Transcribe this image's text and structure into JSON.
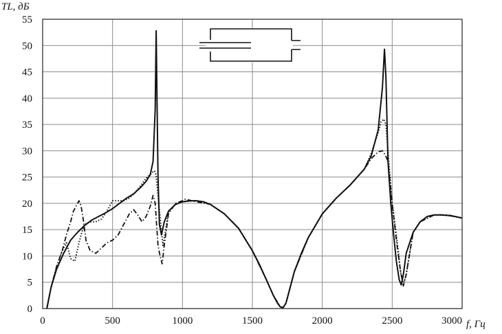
{
  "chart_data": {
    "type": "line",
    "title": "",
    "xlabel": "f, Гц",
    "ylabel": "TL, дБ",
    "xlim": [
      0,
      3000
    ],
    "ylim": [
      0,
      55
    ],
    "xticks": [
      0,
      500,
      1000,
      1500,
      2000,
      2500,
      3000
    ],
    "xtick_labels": [
      "0",
      "500",
      "1000",
      "1500",
      "2000",
      "2500",
      "3000"
    ],
    "yticks": [
      0,
      5,
      10,
      15,
      20,
      25,
      30,
      35,
      40,
      45,
      50,
      55
    ],
    "ytick_labels": [
      "0",
      "5",
      "10",
      "15",
      "20",
      "25",
      "30",
      "35",
      "40",
      "45",
      "50",
      "55"
    ],
    "grid": true,
    "legend": "none",
    "inset": "muffler-schematic",
    "series": [
      {
        "style": "solid",
        "x": [
          30,
          60,
          100,
          150,
          200,
          250,
          300,
          350,
          400,
          450,
          500,
          550,
          600,
          650,
          700,
          740,
          770,
          790,
          805,
          812,
          818,
          825,
          835,
          850,
          870,
          900,
          950,
          1000,
          1050,
          1100,
          1150,
          1200,
          1300,
          1400,
          1500,
          1550,
          1600,
          1650,
          1680,
          1700,
          1720,
          1740,
          1760,
          1800,
          1850,
          1900,
          2000,
          2100,
          2200,
          2300,
          2350,
          2400,
          2430,
          2445,
          2455,
          2470,
          2490,
          2510,
          2530,
          2550,
          2565,
          2580,
          2600,
          2650,
          2700,
          2750,
          2800,
          2850,
          2900,
          2950,
          3000
        ],
        "y": [
          0,
          4,
          7.5,
          10.5,
          13,
          14.5,
          15.8,
          16.8,
          17.5,
          18.2,
          19,
          20,
          21,
          21.8,
          23,
          24.2,
          25.5,
          28,
          38,
          52.8,
          40,
          25,
          16,
          14,
          16.5,
          18.5,
          19.8,
          20.3,
          20.5,
          20.5,
          20.3,
          19.8,
          18,
          15.3,
          11,
          8.4,
          5.5,
          2.5,
          1,
          0.3,
          0.2,
          1,
          3,
          7,
          10.5,
          13.5,
          18,
          21,
          23.5,
          26.5,
          29,
          34,
          42,
          49.3,
          44,
          28,
          20,
          14,
          9,
          5.5,
          4.5,
          6.5,
          10.5,
          14.5,
          16.5,
          17.5,
          17.8,
          17.8,
          17.7,
          17.5,
          17.2
        ]
      },
      {
        "style": "dotted",
        "x": [
          30,
          60,
          100,
          140,
          170,
          200,
          230,
          260,
          280,
          300,
          340,
          380,
          420,
          460,
          500,
          540,
          580,
          620,
          660,
          700,
          740,
          770,
          790,
          800,
          810,
          820,
          830,
          845,
          860,
          880,
          900,
          950,
          1000,
          1100,
          1200,
          1300,
          1400,
          1500,
          1600,
          1650,
          1700,
          1720,
          1740,
          1800,
          1900,
          2000,
          2100,
          2200,
          2300,
          2350,
          2400,
          2420,
          2440,
          2455,
          2470,
          2500,
          2530,
          2560,
          2580,
          2600,
          2650,
          2700,
          2800,
          2900,
          3000
        ],
        "y": [
          0,
          4,
          8,
          11,
          12.5,
          9.5,
          9,
          12.5,
          14.5,
          16,
          16.5,
          16.5,
          17,
          18.5,
          20.5,
          20.5,
          20.5,
          21,
          22,
          23.3,
          24.8,
          25.5,
          26,
          26.2,
          25.5,
          23,
          20,
          16,
          12,
          15,
          18.5,
          19.8,
          20.3,
          20.5,
          19.8,
          18,
          15.3,
          11,
          5.5,
          2.5,
          0.3,
          0.2,
          1,
          7,
          13.5,
          18,
          21,
          23.5,
          26.5,
          29.5,
          33.5,
          35.5,
          36,
          35,
          30,
          20,
          14,
          7,
          4.6,
          6.5,
          14.5,
          16.5,
          17.8,
          17.7,
          17.2
        ]
      },
      {
        "style": "dash-dot",
        "x": [
          30,
          60,
          100,
          140,
          170,
          200,
          220,
          240,
          260,
          275,
          290,
          310,
          340,
          380,
          420,
          460,
          500,
          540,
          580,
          620,
          650,
          680,
          710,
          740,
          770,
          790,
          805,
          815,
          825,
          840,
          855,
          870,
          900,
          950,
          1000,
          1020,
          1050,
          1100,
          1200,
          1300,
          1400,
          1500,
          1600,
          1650,
          1700,
          1720,
          1740,
          1800,
          1900,
          2000,
          2100,
          2200,
          2300,
          2350,
          2400,
          2430,
          2450,
          2470,
          2500,
          2530,
          2560,
          2580,
          2600,
          2650,
          2700,
          2800,
          2900,
          3000
        ],
        "y": [
          0,
          4,
          8,
          11,
          14,
          16.5,
          18.5,
          19.5,
          20.5,
          19.5,
          17,
          13,
          11,
          10.5,
          11.5,
          12.5,
          13,
          14,
          16,
          18,
          18.8,
          17.8,
          16.5,
          17.5,
          19.5,
          21.5,
          20,
          16,
          12,
          10,
          8.5,
          12,
          18,
          20,
          20.5,
          20.8,
          20.6,
          20.3,
          19.8,
          18,
          15.3,
          11,
          5.5,
          2.5,
          0.3,
          0.2,
          1,
          7,
          13.5,
          18,
          21,
          23.5,
          26.5,
          28.5,
          29.8,
          30,
          29.2,
          28,
          20,
          13,
          7,
          4.3,
          6.5,
          14.5,
          16.5,
          17.8,
          17.8,
          17.2
        ]
      }
    ]
  }
}
